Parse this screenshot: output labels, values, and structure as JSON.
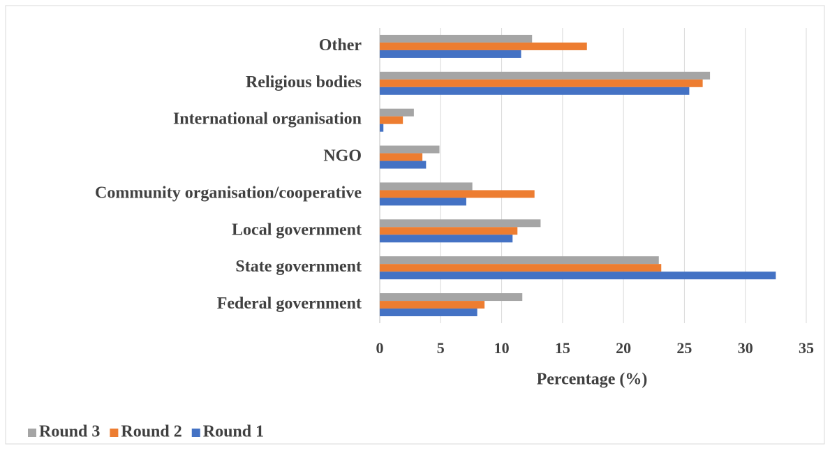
{
  "chart_data": {
    "type": "barh",
    "xlabel": "Percentage (%)",
    "categories": [
      "Other",
      "Religious bodies",
      "International organisation",
      "NGO",
      "Community organisation/cooperative",
      "Local government",
      "State government",
      "Federal government"
    ],
    "series": [
      {
        "name": "Round 3",
        "color": "#a5a5a5",
        "values": [
          12.5,
          27.1,
          2.8,
          4.9,
          7.6,
          13.2,
          22.9,
          11.7
        ]
      },
      {
        "name": "Round 2",
        "color": "#ed7d31",
        "values": [
          17.0,
          26.5,
          1.9,
          3.5,
          12.7,
          11.3,
          23.1,
          8.6
        ]
      },
      {
        "name": "Round 1",
        "color": "#4472c4",
        "values": [
          11.6,
          25.4,
          0.3,
          3.8,
          7.1,
          10.9,
          32.5,
          8.0
        ]
      }
    ],
    "xlim": [
      0,
      35
    ],
    "xticks": [
      0,
      5,
      10,
      15,
      20,
      25,
      30,
      35
    ],
    "grid": true,
    "legend": "bottom-left"
  }
}
